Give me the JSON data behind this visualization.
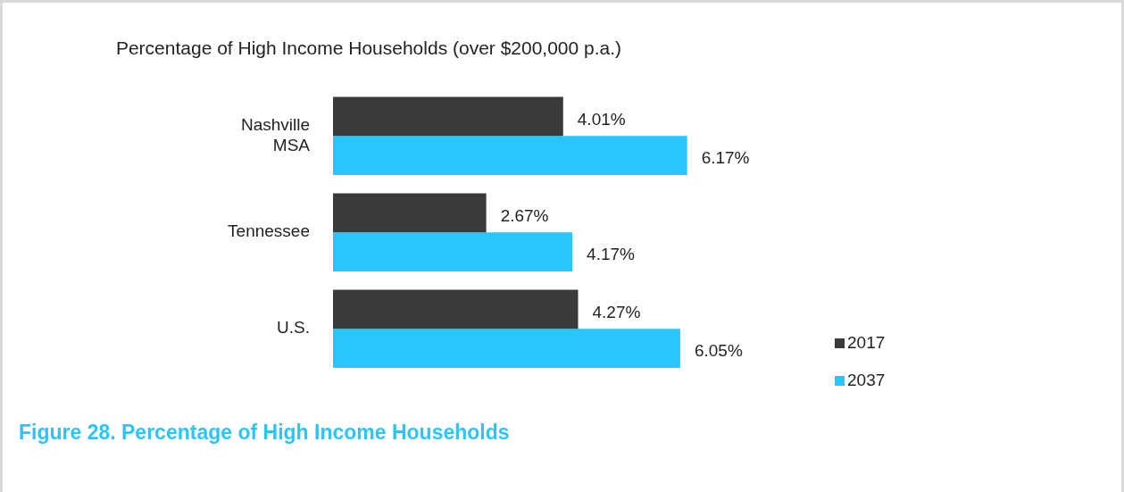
{
  "chart_data": {
    "type": "bar",
    "orientation": "horizontal",
    "title": "Percentage of High Income Households (over $200,000 p.a.)",
    "categories": [
      "Nashville MSA",
      "Tennessee",
      "U.S."
    ],
    "series": [
      {
        "name": "2017",
        "color": "#3a3a3a",
        "values": [
          4.01,
          2.67,
          4.27
        ],
        "value_labels": [
          "4.01%",
          "2.67%",
          "4.27%"
        ]
      },
      {
        "name": "2037",
        "color": "#29c5fb",
        "values": [
          6.17,
          4.17,
          6.05
        ],
        "value_labels": [
          "6.17%",
          "4.17%",
          "6.05%"
        ]
      }
    ],
    "legend": "bottom right",
    "grid": false,
    "tick_labels": "y",
    "annotations": [
      "Figure 28.  Percentage of High Income Households"
    ]
  }
}
